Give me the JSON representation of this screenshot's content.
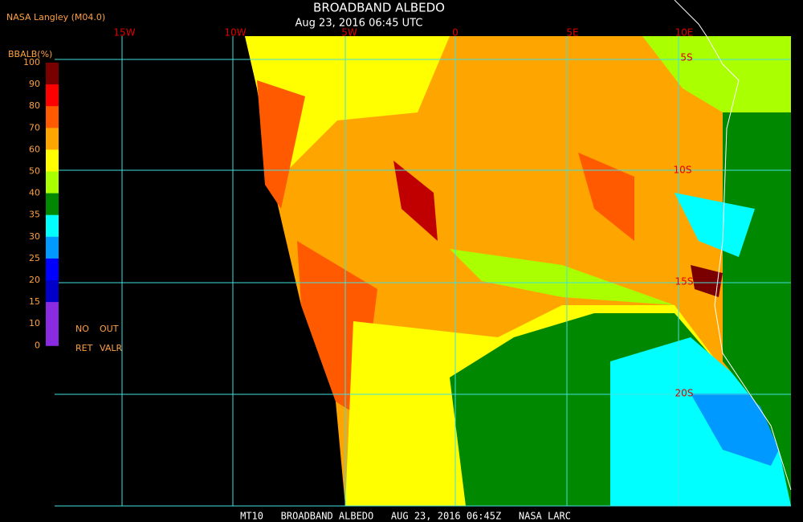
{
  "header": {
    "title": "BROADBAND ALBEDO",
    "subtitle": "Aug 23, 2016 06:45 UTC",
    "source": "NASA Langley (M04.0)"
  },
  "legend": {
    "title": "BBALB(%)",
    "ticks": [
      "100",
      "90",
      "80",
      "70",
      "60",
      "50",
      "40",
      "35",
      "30",
      "25",
      "20",
      "15",
      "10",
      "0"
    ],
    "colors": [
      "#7a0000",
      "#ff0000",
      "#ff5a00",
      "#ffa500",
      "#ffff00",
      "#aaff00",
      "#008800",
      "#00ffff",
      "#0099ff",
      "#0000ff",
      "#0000c8",
      "#8a2be2",
      "#8a2be2"
    ],
    "no_ret": [
      "NO",
      "RET"
    ],
    "out_valr": [
      "OUT",
      "VALR"
    ]
  },
  "grid": {
    "lon_labels": [
      "15W",
      "10W",
      "5W",
      "0",
      "5E",
      "10E"
    ],
    "lat_labels": [
      "5S",
      "10S",
      "15S",
      "20S"
    ]
  },
  "footer": "MT10   BROADBAND ALBEDO   AUG 23, 2016 06:45Z   NASA LARC"
}
